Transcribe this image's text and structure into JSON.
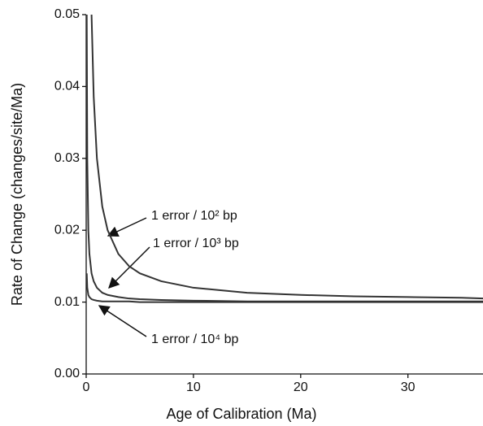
{
  "chart_data": {
    "type": "line",
    "x_label": "Age of Calibration (Ma)",
    "y_label": "Rate of Change (changes/site/Ma)",
    "x": [
      0.05,
      0.1,
      0.2,
      0.3,
      0.5,
      0.7,
      1,
      1.5,
      2,
      3,
      4,
      5,
      7,
      10,
      15,
      20,
      25,
      30,
      35,
      37
    ],
    "series": [
      {
        "color": "#333333",
        "values": [
          null,
          null,
          null,
          null,
          0.05,
          0.0386,
          0.03,
          0.0233,
          0.02,
          0.0167,
          0.015,
          0.014,
          0.0129,
          0.012,
          0.0113,
          0.011,
          0.0108,
          0.0107,
          0.0106,
          0.0105
        ]
      },
      {
        "color": "#333333",
        "values": [
          0.05,
          0.03,
          0.02,
          0.0167,
          0.014,
          0.0129,
          0.012,
          0.0113,
          0.011,
          0.0107,
          0.0105,
          0.0104,
          0.0103,
          0.0102,
          0.0101,
          0.0101,
          0.0101,
          0.0101,
          0.0101,
          0.0101
        ]
      },
      {
        "color": "#333333",
        "values": [
          0.014,
          0.012,
          0.011,
          0.0107,
          0.0104,
          0.0103,
          0.0102,
          0.0101,
          0.0101,
          0.0101,
          0.0101,
          0.01,
          0.01,
          0.01,
          0.01,
          0.01,
          0.01,
          0.01,
          0.01,
          0.01
        ]
      }
    ],
    "annotations": [
      "1 error / 10² bp",
      "1 error / 10³ bp",
      "1 error / 10⁴ bp"
    ],
    "xlim": [
      0,
      37
    ],
    "xticks": [
      0,
      10,
      20,
      30
    ],
    "ylim": [
      0,
      0.05
    ],
    "yticks": [
      {
        "value": 0,
        "label": "0.00"
      },
      0.01,
      0.02,
      0.03,
      0.04,
      0.05
    ]
  }
}
